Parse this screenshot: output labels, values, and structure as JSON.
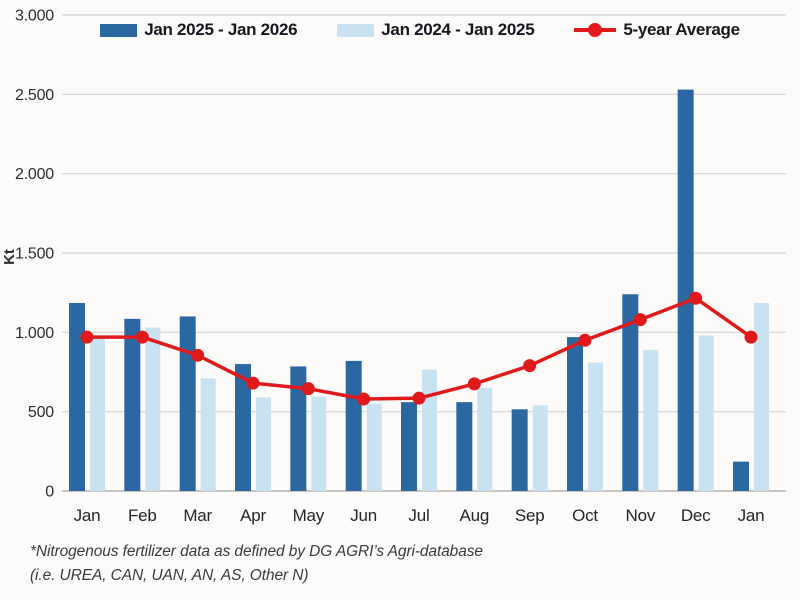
{
  "chart_data": {
    "type": "bar",
    "note": "grouped bar chart with overlaid line series",
    "categories": [
      "Jan",
      "Feb",
      "Mar",
      "Apr",
      "May",
      "Jun",
      "Jul",
      "Aug",
      "Sep",
      "Oct",
      "Nov",
      "Dec",
      "Jan"
    ],
    "series": [
      {
        "name": "Jan 2025 - Jan 2026",
        "type": "bar",
        "color": "#2b67a0",
        "values": [
          1185,
          1085,
          1100,
          800,
          785,
          820,
          560,
          560,
          515,
          970,
          1240,
          2530,
          185
        ]
      },
      {
        "name": "Jan 2024 - Jan 2025",
        "type": "bar",
        "color": "#c9e2f2",
        "values": [
          960,
          1030,
          710,
          590,
          595,
          550,
          765,
          650,
          540,
          810,
          890,
          980,
          1185
        ]
      },
      {
        "name": "5-year Average",
        "type": "line",
        "color": "#e01a1a",
        "values": [
          970,
          970,
          855,
          680,
          645,
          580,
          585,
          675,
          790,
          950,
          1080,
          1215,
          970
        ]
      }
    ],
    "title": "",
    "xlabel": "",
    "ylabel": "Kt",
    "ylim": [
      0,
      3000
    ],
    "ytick_interval": 500,
    "ytick_labels": [
      "0",
      "500",
      "1.000",
      "1.500",
      "2.000",
      "2.500",
      "3.000"
    ],
    "grid": "horizontal",
    "legend_position": "top"
  },
  "footnote": {
    "line1": "*Nitrogenous fertilizer data as defined by DG AGRI’s Agri-database",
    "line2": "(i.e. UREA, CAN, UAN, AN, AS, Other N)"
  },
  "colors": {
    "background": "#fcfbfa",
    "gridline": "#dcdad8",
    "axis_line": "#c8c6c4",
    "bar_dark_blue": "#2b67a0",
    "bar_light_blue": "#c9e2f2",
    "line_red": "#e01a1a",
    "text": "#262524"
  }
}
